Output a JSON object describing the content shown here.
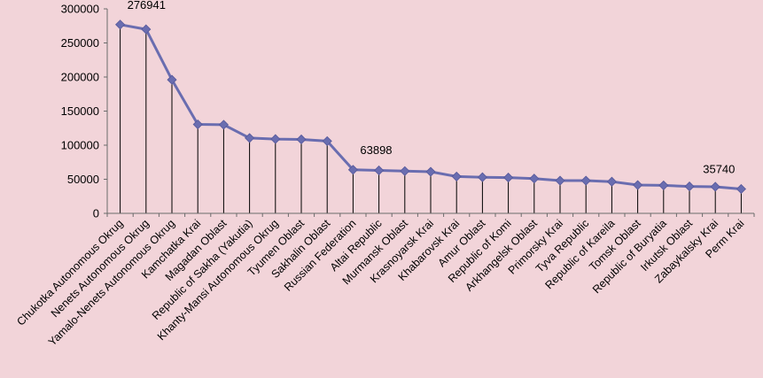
{
  "chart_data": {
    "type": "line",
    "title": "",
    "xlabel": "",
    "ylabel": "",
    "ylim": [
      0,
      300000
    ],
    "yticks": [
      0,
      50000,
      100000,
      150000,
      200000,
      250000,
      300000
    ],
    "grid": false,
    "drop_lines": true,
    "series_color": "#6a6db0",
    "categories": [
      "Chukotka Autonomous Okrug",
      "Nenets Autonomous Okrug",
      "Yamalo-Nenets Autonomous Okrug",
      "Kamchatka Krai",
      "Magadan Oblast",
      "Republic of Sakha (Yakutia)",
      "Khanty-Mansi Autonomous Okrug",
      "Tyumen Oblast",
      "Sakhalin Oblast",
      "Russian Federation",
      "Altai Republic",
      "Murmansk Oblast",
      "Krasnoyarsk Krai",
      "Khabarovsk Krai",
      "Amur Oblast",
      "Republic of Komi",
      "Arkhangelsk Oblast",
      "Primorsky Krai",
      "Tyva Republic",
      "Republic of Kareila",
      "Tomsk Oblast",
      "Republic of Buryatia",
      "Irkutsk Oblast",
      "Zabaykalsky Krai",
      "Perm Krai"
    ],
    "values": [
      276941,
      270000,
      196000,
      130500,
      130000,
      110500,
      109000,
      108500,
      106000,
      63898,
      63000,
      62000,
      61000,
      54000,
      53000,
      52500,
      51000,
      48000,
      48000,
      46500,
      41500,
      41000,
      39500,
      39000,
      35740
    ],
    "data_labels": [
      {
        "index": 0,
        "text": "276941"
      },
      {
        "index": 9,
        "text": "63898"
      },
      {
        "index": 24,
        "text": "35740"
      }
    ]
  }
}
